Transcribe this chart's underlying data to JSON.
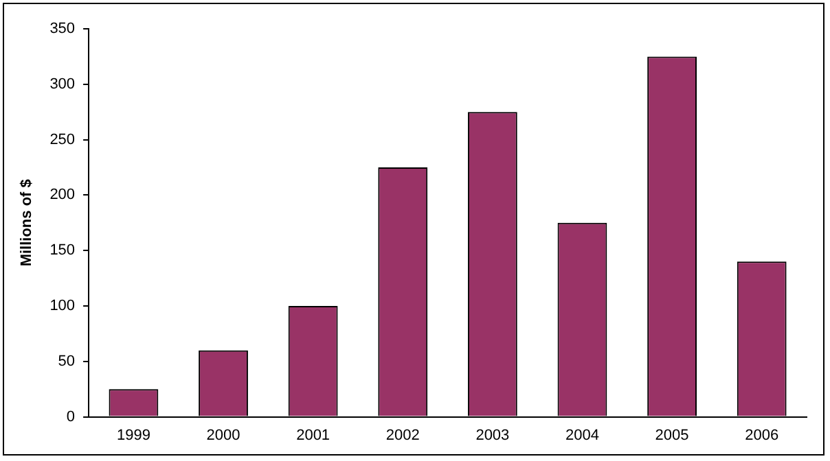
{
  "chart_data": {
    "type": "bar",
    "ylabel": "Millions of $",
    "categories": [
      "1999",
      "2000",
      "2001",
      "2002",
      "2003",
      "2004",
      "2005",
      "2006"
    ],
    "values": [
      25,
      60,
      100,
      225,
      275,
      175,
      325,
      140
    ],
    "color": "#993366",
    "ylim": [
      0,
      350
    ],
    "yticks": [
      0,
      50,
      100,
      150,
      200,
      250,
      300,
      350
    ],
    "grid": false,
    "legend": false
  }
}
